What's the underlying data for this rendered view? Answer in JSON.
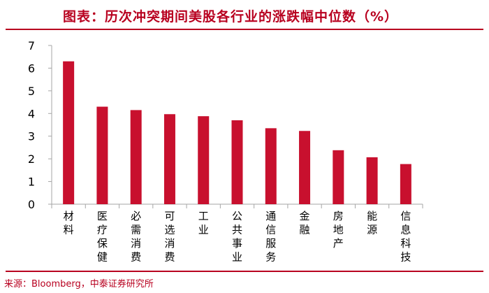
{
  "title": "图表：历次冲突期间美股各行业的涨跌幅中位数（%）",
  "source": "来源：Bloomberg，中泰证券研究所",
  "colors": {
    "accent": "#b8001f",
    "bar": "#c8102e",
    "axis": "#a6a6a6"
  },
  "chart_data": {
    "type": "bar",
    "title": "历次冲突期间美股各行业的涨跌幅中位数（%）",
    "xlabel": "",
    "ylabel": "",
    "ylim": [
      0,
      7
    ],
    "yticks": [
      0,
      1,
      2,
      3,
      4,
      5,
      6,
      7
    ],
    "grid": false,
    "categories": [
      "材料",
      "医疗保健",
      "必需消费",
      "可选消费",
      "工业",
      "公共事业",
      "通信服务",
      "金融",
      "房地产",
      "能源",
      "信息科技"
    ],
    "values": [
      6.3,
      4.3,
      4.15,
      3.97,
      3.88,
      3.7,
      3.35,
      3.23,
      2.38,
      2.07,
      1.77
    ]
  }
}
